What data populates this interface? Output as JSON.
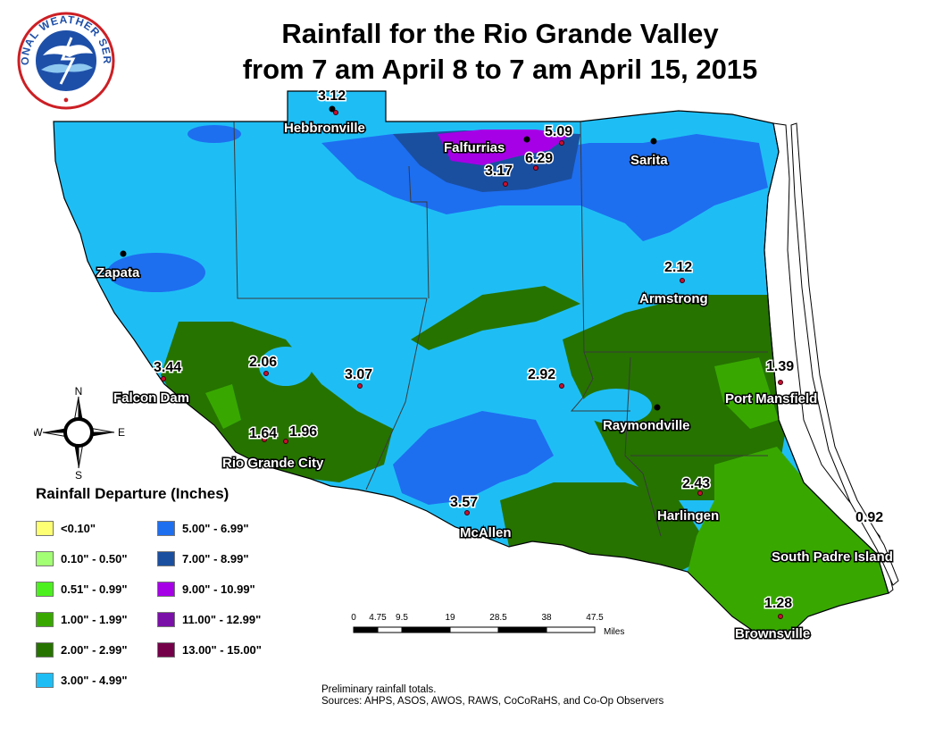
{
  "title": {
    "line1": "Rainfall for the Rio Grande Valley",
    "line2": "from 7 am April 8 to 7 am April 15, 2015"
  },
  "logo": {
    "text": "NATIONAL WEATHER SERVICE",
    "icon": "nws-logo-icon"
  },
  "places": [
    {
      "id": "hebbronville",
      "name": "Hebbronville"
    },
    {
      "id": "falfurrias",
      "name": "Falfurrias"
    },
    {
      "id": "sarita",
      "name": "Sarita"
    },
    {
      "id": "zapata",
      "name": "Zapata"
    },
    {
      "id": "armstrong",
      "name": "Armstrong"
    },
    {
      "id": "falcon-dam",
      "name": "Falcon Dam"
    },
    {
      "id": "port-mansfield",
      "name": "Port Mansfield"
    },
    {
      "id": "raymondville",
      "name": "Raymondville"
    },
    {
      "id": "rio-grande-city",
      "name": "Rio Grande City"
    },
    {
      "id": "harlingen",
      "name": "Harlingen"
    },
    {
      "id": "mcallen",
      "name": "McAllen"
    },
    {
      "id": "south-padre-island",
      "name": "South Padre Island"
    },
    {
      "id": "brownsville",
      "name": "Brownsville"
    }
  ],
  "values": [
    {
      "id": "hebbronville",
      "value": "3.12"
    },
    {
      "id": "falfurrias-east",
      "value": "5.09"
    },
    {
      "id": "falfurrias-south",
      "value": "6.29"
    },
    {
      "id": "falfurrias-southwest",
      "value": "3.17"
    },
    {
      "id": "armstrong",
      "value": "2.12"
    },
    {
      "id": "falcon-dam",
      "value": "3.44"
    },
    {
      "id": "central-west",
      "value": "2.06"
    },
    {
      "id": "central",
      "value": "3.07"
    },
    {
      "id": "central-east",
      "value": "2.92"
    },
    {
      "id": "port-mansfield",
      "value": "1.39"
    },
    {
      "id": "rio-grande-city-west",
      "value": "1.64"
    },
    {
      "id": "rio-grande-city-east",
      "value": "1.96"
    },
    {
      "id": "harlingen",
      "value": "2.43"
    },
    {
      "id": "mcallen",
      "value": "3.57"
    },
    {
      "id": "south-padre-island",
      "value": "0.92"
    },
    {
      "id": "brownsville",
      "value": "1.28"
    }
  ],
  "legend": {
    "title": "Rainfall Departure (Inches)",
    "items": [
      {
        "label": "<0.10\"",
        "color": "#ffff73"
      },
      {
        "label": "0.10\" - 0.50\"",
        "color": "#a3ff73"
      },
      {
        "label": "0.51\" - 0.99\"",
        "color": "#4cf01f"
      },
      {
        "label": "1.00\" - 1.99\"",
        "color": "#38a800"
      },
      {
        "label": "2.00\" - 2.99\"",
        "color": "#267300"
      },
      {
        "label": "3.00\" - 4.99\"",
        "color": "#1ebef5"
      },
      {
        "label": "5.00\" - 6.99\"",
        "color": "#1e6ef0"
      },
      {
        "label": "7.00\" - 8.99\"",
        "color": "#1a4fa0"
      },
      {
        "label": "9.00\" - 10.99\"",
        "color": "#a500e6"
      },
      {
        "label": "11.00\" - 12.99\"",
        "color": "#7a10a8"
      },
      {
        "label": "13.00\" - 15.00\"",
        "color": "#730049"
      }
    ]
  },
  "compass": {
    "n": "N",
    "s": "S",
    "e": "E",
    "w": "W"
  },
  "scalebar": {
    "ticks": [
      "0",
      "4.75",
      "9.5",
      "19",
      "28.5",
      "38",
      "47.5"
    ],
    "unit": "Miles"
  },
  "source": {
    "line1": "Preliminary rainfall totals.",
    "line2": "Sources: AHPS, ASOS, AWOS, RAWS, CoCoRaHS, and Co-Op Observers"
  }
}
